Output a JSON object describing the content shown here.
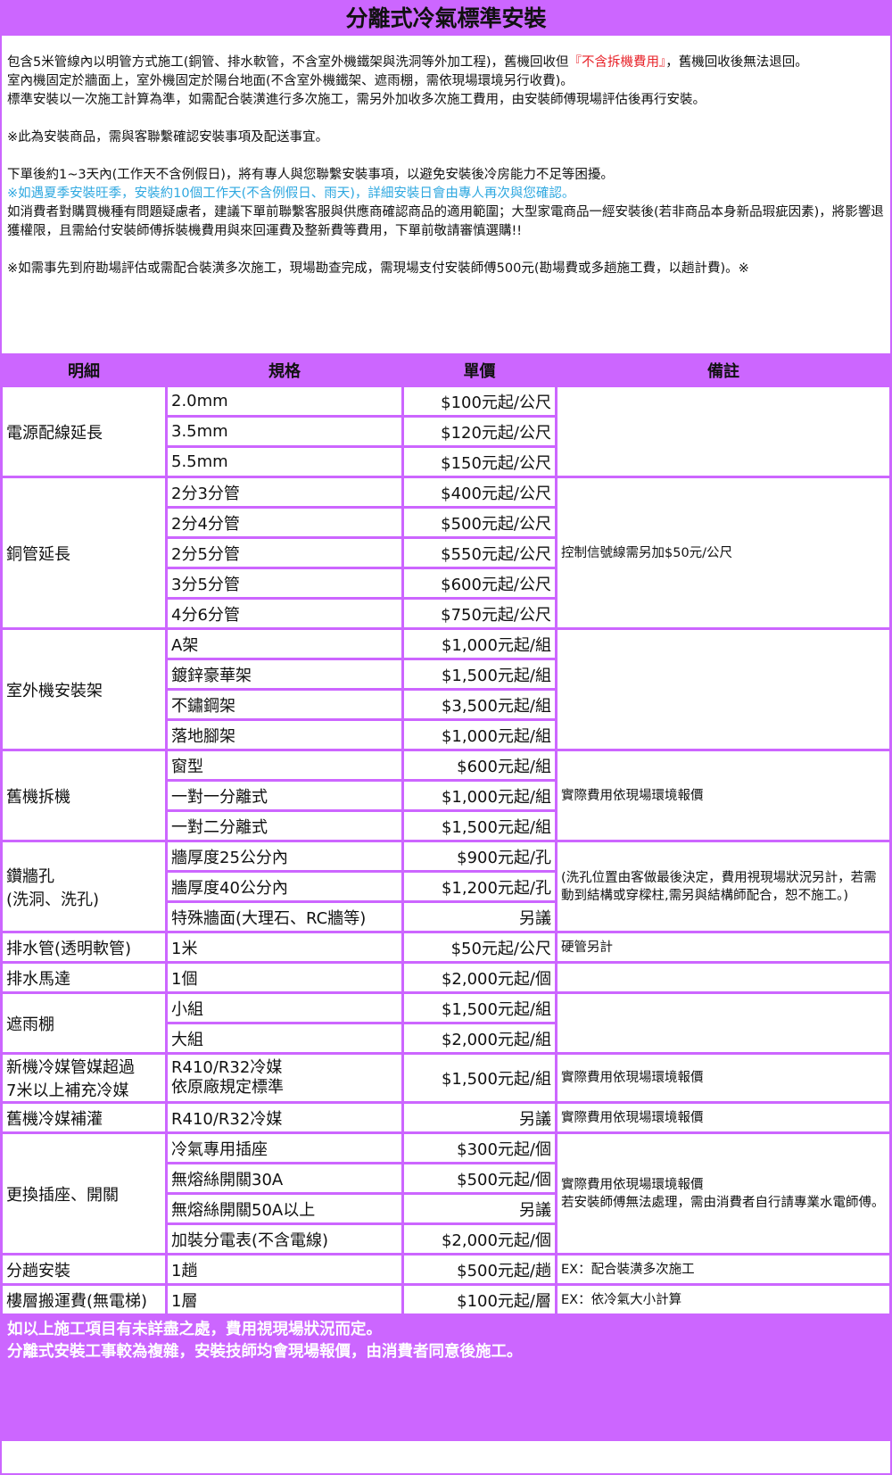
{
  "title": "分離式冷氣標準安裝",
  "intro": {
    "p1_a": "包含5米管線內以明管方式施工(銅管、排水軟管，不含室外機鐵架與洗洞等外加工程)，舊機回收但",
    "p1_red": "『不含拆機費用』",
    "p1_b": "，舊機回收後無法退回。",
    "p2": "室內機固定於牆面上，室外機固定於陽台地面(不含室外機鐵架、遮雨棚，需依現場環境另行收費)。",
    "p3": "標準安裝以一次施工計算為準，如需配合裝潢進行多次施工，需另外加收多次施工費用，由安裝師傅現場評估後再行安裝。",
    "p4": "※此為安裝商品，需與客聯繫確認安裝事項及配送事宜。",
    "p5": "下單後約1~3天內(工作天不含例假日)，將有專人與您聯繫安裝事項，以避免安裝後冷房能力不足等困擾。",
    "p6_blue": "※如遇夏季安裝旺季，安裝約10個工作天(不含例假日、雨天)，詳細安裝日會由專人再次與您確認。",
    "p7": "如消費者對購買機種有問題疑慮者，建議下單前聯繫客服與供應商確認商品的適用範圍；大型家電商品一經安裝後(若非商品本身新品瑕疵因素)，將影響退獲權限，且需給付安裝師傅拆裝機費用與來回運費及整新費等費用，下單前敬請審慎選購!!",
    "p8": "※如需事先到府勘場評估或需配合裝潢多次施工，現場勘查完成，需現場支付安裝師傅500元(勘場費或多趟施工費，以趟計費)。※"
  },
  "table": {
    "headers": [
      "明細",
      "規格",
      "單價",
      "備註"
    ],
    "groups": [
      {
        "item": "電源配線延長",
        "note": "",
        "rows": [
          [
            "2.0mm",
            "$100元起/公尺"
          ],
          [
            "3.5mm",
            "$120元起/公尺"
          ],
          [
            "5.5mm",
            "$150元起/公尺"
          ]
        ]
      },
      {
        "item": "銅管延長",
        "note": "控制信號線需另加$50元/公尺",
        "rows": [
          [
            "2分3分管",
            "$400元起/公尺"
          ],
          [
            "2分4分管",
            "$500元起/公尺"
          ],
          [
            "2分5分管",
            "$550元起/公尺"
          ],
          [
            "3分5分管",
            "$600元起/公尺"
          ],
          [
            "4分6分管",
            "$750元起/公尺"
          ]
        ]
      },
      {
        "item": "室外機安裝架",
        "note": "",
        "rows": [
          [
            "A架",
            "$1,000元起/組"
          ],
          [
            "鍍鋅豪華架",
            "$1,500元起/組"
          ],
          [
            "不鏽鋼架",
            "$3,500元起/組"
          ],
          [
            "落地腳架",
            "$1,000元起/組"
          ]
        ]
      },
      {
        "item": "舊機拆機",
        "note": "實際費用依現場環境報價",
        "rows": [
          [
            "窗型",
            "$600元起/組"
          ],
          [
            "一對一分離式",
            "$1,000元起/組"
          ],
          [
            "一對二分離式",
            "$1,500元起/組"
          ]
        ]
      },
      {
        "item": "鑽牆孔\n(洗洞、洗孔)",
        "note": "(洗孔位置由客做最後決定，費用視現場狀況另計，若需動到結構或穿樑柱,需另與結構師配合，恕不施工。)",
        "rows": [
          [
            "牆厚度25公分內",
            "$900元起/孔"
          ],
          [
            "牆厚度40公分內",
            "$1,200元起/孔"
          ],
          [
            "特殊牆面(大理石、RC牆等)",
            "另議"
          ]
        ]
      },
      {
        "item": "排水管(透明軟管)",
        "note": "硬管另計",
        "rows": [
          [
            "1米",
            "$50元起/公尺"
          ]
        ]
      },
      {
        "item": "排水馬達",
        "note": "",
        "rows": [
          [
            "1個",
            "$2,000元起/個"
          ]
        ]
      },
      {
        "item": "遮雨棚",
        "note": "",
        "rows": [
          [
            "小組",
            "$1,500元起/組"
          ],
          [
            "大組",
            "$2,000元起/組"
          ]
        ]
      },
      {
        "item": "新機冷媒管媒超過\n7米以上補充冷媒",
        "note": "實際費用依現場環境報價",
        "tall": true,
        "rows": [
          [
            "R410/R32冷媒\n依原廠規定標準",
            "$1,500元起/組"
          ]
        ]
      },
      {
        "item": "舊機冷媒補灌",
        "note": "實際費用依現場環境報價",
        "rows": [
          [
            "R410/R32冷媒",
            "另議"
          ]
        ]
      },
      {
        "item": "更換插座、開關",
        "note": "實際費用依現場環境報價\n若安裝師傅無法處理，需由消費者自行請專業水電師傅。",
        "rows": [
          [
            "冷氣專用插座",
            "$300元起/個"
          ],
          [
            "無熔絲開關30A",
            "$500元起/個"
          ],
          [
            "無熔絲開關50A以上",
            "另議"
          ],
          [
            "加裝分電表(不含電線)",
            "$2,000元起/個"
          ]
        ]
      },
      {
        "item": "分趟安裝",
        "note": "EX：配合裝潢多次施工",
        "rows": [
          [
            "1趟",
            "$500元起/趟"
          ]
        ]
      },
      {
        "item": "樓層搬運費(無電梯)",
        "note": "EX：依冷氣大小計算",
        "rows": [
          [
            "1層",
            "$100元起/層"
          ]
        ]
      }
    ]
  },
  "footer": {
    "line1": "如以上施工項目有未詳盡之處，費用視現場狀況而定。",
    "line2": "分離式安裝工事較為複雜，安裝技師均會現場報價，由消費者同意後施工。"
  },
  "colors": {
    "accent": "#cc66ff",
    "red": "#e8232a",
    "blue": "#2fa8e0"
  }
}
